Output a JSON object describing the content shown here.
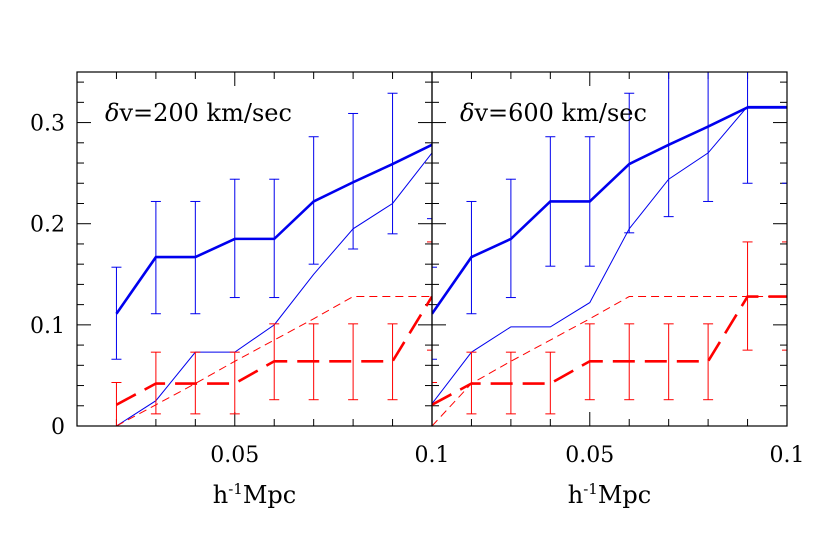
{
  "chart_data": [
    {
      "type": "line",
      "annotation": {
        "symbol": "δ",
        "text": "v=200 km/sec"
      },
      "xlabel": {
        "base": "h",
        "sup": "-1",
        "rest": "Mpc"
      },
      "xlim": [
        0.01,
        0.1
      ],
      "ylim": [
        0,
        0.35
      ],
      "xticks": [
        {
          "v": 0.05,
          "label": "0.05"
        },
        {
          "v": 0.1,
          "label": "0.1"
        }
      ],
      "yticks": [
        {
          "v": 0,
          "label": "0"
        },
        {
          "v": 0.1,
          "label": "0.1"
        },
        {
          "v": 0.2,
          "label": "0.2"
        },
        {
          "v": 0.3,
          "label": "0.3"
        }
      ],
      "series": [
        {
          "color": "#0000ee",
          "width": 2.6,
          "dash": "",
          "x": [
            0.02,
            0.03,
            0.04,
            0.05,
            0.06,
            0.07,
            0.08,
            0.09,
            0.1
          ],
          "y": [
            0.111,
            0.167,
            0.167,
            0.185,
            0.185,
            0.222,
            0.241,
            0.259,
            0.278
          ],
          "err_lo": [
            0.066,
            0.111,
            0.111,
            0.127,
            0.127,
            0.16,
            0.175,
            0.19,
            0.205
          ],
          "err_hi": [
            0.157,
            0.222,
            0.222,
            0.244,
            0.244,
            0.286,
            0.309,
            0.329,
            0.35
          ]
        },
        {
          "color": "#0000ee",
          "width": 1.0,
          "dash": "",
          "x": [
            0.02,
            0.03,
            0.04,
            0.05,
            0.06,
            0.07,
            0.08,
            0.09,
            0.1
          ],
          "y": [
            0.0,
            0.025,
            0.073,
            0.073,
            0.1,
            0.15,
            0.195,
            0.22,
            0.27
          ]
        },
        {
          "color": "#ff0000",
          "width": 2.6,
          "dash": "22,10",
          "x": [
            0.02,
            0.03,
            0.04,
            0.05,
            0.06,
            0.07,
            0.08,
            0.09,
            0.1
          ],
          "y": [
            0.021,
            0.042,
            0.042,
            0.042,
            0.064,
            0.064,
            0.064,
            0.064,
            0.128
          ],
          "err_lo": [
            0.0,
            0.012,
            0.012,
            0.012,
            0.026,
            0.026,
            0.026,
            0.026,
            0.075
          ],
          "err_hi": [
            0.043,
            0.073,
            0.073,
            0.073,
            0.101,
            0.101,
            0.101,
            0.101,
            0.182
          ]
        },
        {
          "color": "#ff0000",
          "width": 1.0,
          "dash": "8,5",
          "x": [
            0.02,
            0.03,
            0.04,
            0.05,
            0.06,
            0.07,
            0.08,
            0.09,
            0.1
          ],
          "y": [
            0.0,
            0.021,
            0.042,
            0.064,
            0.085,
            0.106,
            0.128,
            0.128,
            0.128
          ]
        }
      ]
    },
    {
      "type": "line",
      "annotation": {
        "symbol": "δ",
        "text": "v=600 km/sec"
      },
      "xlabel": {
        "base": "h",
        "sup": "-1",
        "rest": "Mpc"
      },
      "xlim": [
        0.01,
        0.1
      ],
      "ylim": [
        0,
        0.35
      ],
      "xticks": [
        {
          "v": 0.05,
          "label": "0.05"
        },
        {
          "v": 0.1,
          "label": "0.1"
        }
      ],
      "yticks": [],
      "series": [
        {
          "color": "#0000ee",
          "width": 2.6,
          "dash": "",
          "x": [
            0.01,
            0.02,
            0.03,
            0.04,
            0.05,
            0.06,
            0.07,
            0.08,
            0.09,
            0.1
          ],
          "y": [
            0.111,
            0.167,
            0.185,
            0.222,
            0.222,
            0.259,
            0.278,
            0.296,
            0.315,
            0.315
          ],
          "err_lo": [
            0.066,
            0.111,
            0.127,
            0.158,
            0.158,
            0.191,
            0.207,
            0.222,
            0.24,
            0.24
          ],
          "err_hi": [
            0.157,
            0.222,
            0.244,
            0.286,
            0.286,
            0.329,
            0.35,
            0.35,
            0.35,
            0.35
          ]
        },
        {
          "color": "#0000ee",
          "width": 1.0,
          "dash": "",
          "x": [
            0.01,
            0.02,
            0.03,
            0.04,
            0.05,
            0.06,
            0.07,
            0.08,
            0.09,
            0.1
          ],
          "y": [
            0.022,
            0.073,
            0.098,
            0.098,
            0.122,
            0.195,
            0.244,
            0.27,
            0.316,
            0.316
          ]
        },
        {
          "color": "#ff0000",
          "width": 2.6,
          "dash": "22,10",
          "x": [
            0.01,
            0.02,
            0.03,
            0.04,
            0.05,
            0.06,
            0.07,
            0.08,
            0.09,
            0.1
          ],
          "y": [
            0.021,
            0.042,
            0.042,
            0.042,
            0.064,
            0.064,
            0.064,
            0.064,
            0.128,
            0.128
          ],
          "err_lo": [
            0.0,
            0.012,
            0.012,
            0.012,
            0.026,
            0.026,
            0.026,
            0.026,
            0.075,
            0.075
          ],
          "err_hi": [
            0.043,
            0.073,
            0.073,
            0.073,
            0.101,
            0.101,
            0.101,
            0.101,
            0.182,
            0.182
          ]
        },
        {
          "color": "#ff0000",
          "width": 1.0,
          "dash": "8,5",
          "x": [
            0.01,
            0.02,
            0.03,
            0.04,
            0.05,
            0.06,
            0.07,
            0.08,
            0.09,
            0.1
          ],
          "y": [
            0.0,
            0.042,
            0.064,
            0.085,
            0.106,
            0.128,
            0.128,
            0.128,
            0.128,
            0.128
          ]
        }
      ]
    }
  ]
}
